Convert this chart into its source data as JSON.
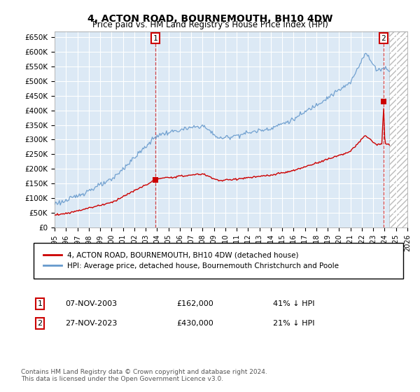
{
  "title": "4, ACTON ROAD, BOURNEMOUTH, BH10 4DW",
  "subtitle": "Price paid vs. HM Land Registry's House Price Index (HPI)",
  "title_fontsize": 10,
  "subtitle_fontsize": 8.5,
  "plot_bg_color": "#dce9f5",
  "legend_entry1": "4, ACTON ROAD, BOURNEMOUTH, BH10 4DW (detached house)",
  "legend_entry2": "HPI: Average price, detached house, Bournemouth Christchurch and Poole",
  "sale1_date": 2003.854,
  "sale1_price": 162000,
  "sale1_label": "07-NOV-2003",
  "sale1_pct": "41% ↓ HPI",
  "sale2_date": 2023.9,
  "sale2_price": 430000,
  "sale2_label": "27-NOV-2023",
  "sale2_pct": "21% ↓ HPI",
  "ylim": [
    0,
    670000
  ],
  "xlim": [
    1995,
    2026
  ],
  "hatch_start": 2024.42,
  "grid_color": "#ffffff",
  "red_color": "#cc0000",
  "blue_color": "#6699cc",
  "footnote": "Contains HM Land Registry data © Crown copyright and database right 2024.\nThis data is licensed under the Open Government Licence v3.0."
}
